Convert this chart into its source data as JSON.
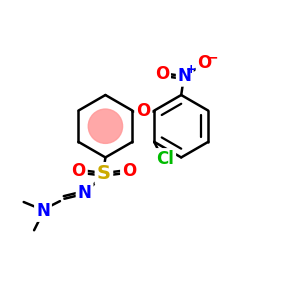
{
  "bg_color": "#ffffff",
  "bond_color": "#000000",
  "bond_lw": 1.8,
  "atom_colors": {
    "O": "#ff0000",
    "N": "#0000ff",
    "S": "#ccaa00",
    "Cl": "#00bb00",
    "C": "#000000"
  },
  "font_size_atom": 11,
  "aromatic_color_left": "#ff9999",
  "aromatic_color_right": "#cccccc",
  "figsize": [
    3.0,
    3.0
  ],
  "dpi": 100
}
